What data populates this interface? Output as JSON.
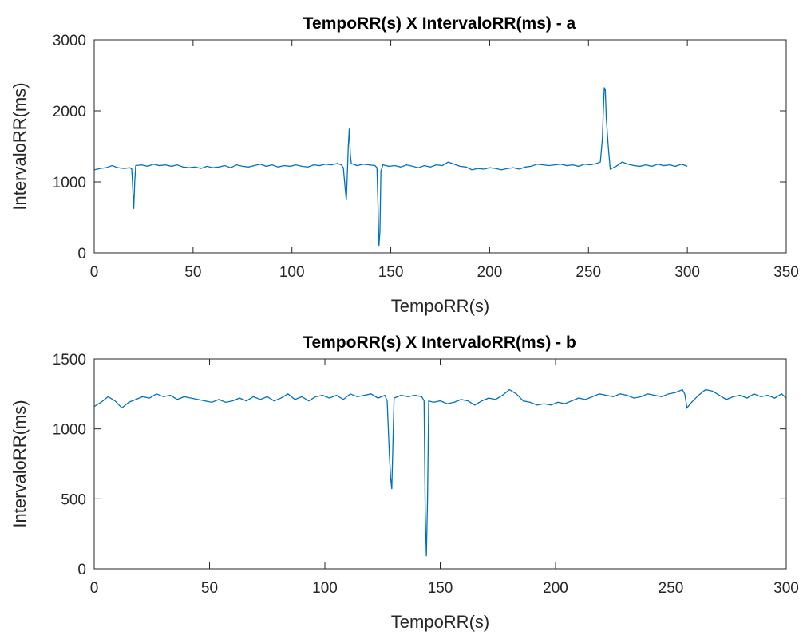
{
  "chart_data": [
    {
      "type": "line",
      "title": "TempoRR(s) X IntervaloRR(ms) - a",
      "xlabel": "TempoRR(s)",
      "ylabel": "IntervaloRR(ms)",
      "color": "#0072bd",
      "xlim": [
        0,
        350
      ],
      "ylim": [
        0,
        3000
      ],
      "xticks": [
        0,
        50,
        100,
        150,
        200,
        250,
        300,
        350
      ],
      "yticks": [
        0,
        1000,
        2000,
        3000
      ],
      "x": [
        0,
        3,
        6,
        9,
        12,
        15,
        18,
        19,
        19.5,
        20,
        20.5,
        21,
        24,
        27,
        30,
        33,
        36,
        39,
        42,
        45,
        48,
        51,
        54,
        57,
        60,
        63,
        66,
        69,
        72,
        75,
        78,
        81,
        84,
        87,
        90,
        93,
        96,
        99,
        102,
        105,
        108,
        111,
        114,
        117,
        120,
        123,
        125,
        126,
        127,
        127.5,
        128,
        128.5,
        129,
        129.5,
        130,
        133,
        136,
        139,
        142,
        143,
        143.5,
        144,
        144.5,
        145,
        146,
        149,
        152,
        155,
        158,
        161,
        164,
        167,
        170,
        173,
        176,
        179,
        182,
        185,
        188,
        191,
        194,
        197,
        200,
        203,
        206,
        209,
        212,
        215,
        218,
        221,
        224,
        227,
        230,
        233,
        236,
        239,
        242,
        245,
        248,
        251,
        254,
        256,
        257,
        257.5,
        258,
        258.5,
        259,
        260,
        261,
        264,
        267,
        270,
        273,
        276,
        279,
        282,
        285,
        288,
        291,
        294,
        297,
        300
      ],
      "values": [
        1170,
        1190,
        1200,
        1230,
        1200,
        1190,
        1200,
        1180,
        900,
        620,
        1000,
        1230,
        1240,
        1220,
        1250,
        1230,
        1240,
        1220,
        1240,
        1210,
        1200,
        1210,
        1190,
        1220,
        1200,
        1210,
        1230,
        1200,
        1240,
        1220,
        1210,
        1230,
        1250,
        1220,
        1240,
        1210,
        1230,
        1220,
        1240,
        1220,
        1210,
        1240,
        1230,
        1250,
        1240,
        1260,
        1240,
        1200,
        880,
        740,
        1100,
        1500,
        1750,
        1400,
        1260,
        1230,
        1250,
        1240,
        1230,
        1200,
        700,
        100,
        300,
        1150,
        1240,
        1220,
        1230,
        1210,
        1240,
        1220,
        1200,
        1230,
        1210,
        1240,
        1230,
        1280,
        1250,
        1220,
        1210,
        1170,
        1190,
        1180,
        1200,
        1190,
        1170,
        1190,
        1200,
        1180,
        1210,
        1220,
        1250,
        1240,
        1230,
        1240,
        1250,
        1230,
        1240,
        1220,
        1250,
        1240,
        1260,
        1280,
        1600,
        2000,
        2330,
        2300,
        1900,
        1500,
        1180,
        1220,
        1280,
        1250,
        1230,
        1220,
        1240,
        1220,
        1250,
        1230,
        1240,
        1220,
        1250,
        1220
      ]
    },
    {
      "type": "line",
      "title": "TempoRR(s) X IntervaloRR(ms) - b",
      "xlabel": "TempoRR(s)",
      "ylabel": "IntervaloRR(ms)",
      "color": "#0072bd",
      "xlim": [
        0,
        300
      ],
      "ylim": [
        0,
        1500
      ],
      "xticks": [
        0,
        50,
        100,
        150,
        200,
        250,
        300
      ],
      "yticks": [
        0,
        500,
        1000,
        1500
      ],
      "x": [
        0,
        3,
        6,
        9,
        12,
        15,
        18,
        21,
        24,
        27,
        30,
        33,
        36,
        39,
        42,
        45,
        48,
        51,
        54,
        57,
        60,
        63,
        66,
        69,
        72,
        75,
        78,
        81,
        84,
        87,
        90,
        93,
        96,
        99,
        102,
        105,
        108,
        111,
        114,
        117,
        120,
        123,
        126,
        127,
        128,
        128.5,
        129,
        129.5,
        130,
        133,
        136,
        139,
        142,
        143,
        143.5,
        144,
        144.5,
        145,
        147,
        150,
        153,
        156,
        159,
        162,
        165,
        168,
        171,
        174,
        177,
        180,
        183,
        186,
        189,
        192,
        195,
        198,
        201,
        204,
        207,
        210,
        213,
        216,
        219,
        222,
        225,
        228,
        231,
        234,
        237,
        240,
        243,
        246,
        249,
        252,
        255,
        256,
        257,
        259,
        262,
        265,
        268,
        271,
        274,
        277,
        280,
        283,
        286,
        289,
        292,
        295,
        298,
        300
      ],
      "values": [
        1160,
        1190,
        1230,
        1200,
        1150,
        1190,
        1210,
        1230,
        1220,
        1250,
        1230,
        1240,
        1210,
        1230,
        1220,
        1210,
        1200,
        1190,
        1210,
        1190,
        1200,
        1220,
        1200,
        1230,
        1210,
        1230,
        1200,
        1220,
        1250,
        1210,
        1230,
        1200,
        1230,
        1240,
        1220,
        1240,
        1210,
        1250,
        1230,
        1240,
        1250,
        1220,
        1240,
        1200,
        800,
        650,
        570,
        900,
        1220,
        1240,
        1230,
        1240,
        1230,
        1200,
        400,
        90,
        500,
        1200,
        1190,
        1200,
        1180,
        1190,
        1210,
        1200,
        1170,
        1200,
        1220,
        1210,
        1240,
        1280,
        1250,
        1200,
        1190,
        1170,
        1180,
        1170,
        1190,
        1180,
        1200,
        1220,
        1210,
        1230,
        1250,
        1240,
        1230,
        1250,
        1240,
        1220,
        1230,
        1250,
        1240,
        1230,
        1250,
        1260,
        1280,
        1250,
        1150,
        1190,
        1240,
        1280,
        1270,
        1240,
        1210,
        1230,
        1240,
        1220,
        1250,
        1230,
        1240,
        1220,
        1250,
        1220
      ]
    }
  ]
}
